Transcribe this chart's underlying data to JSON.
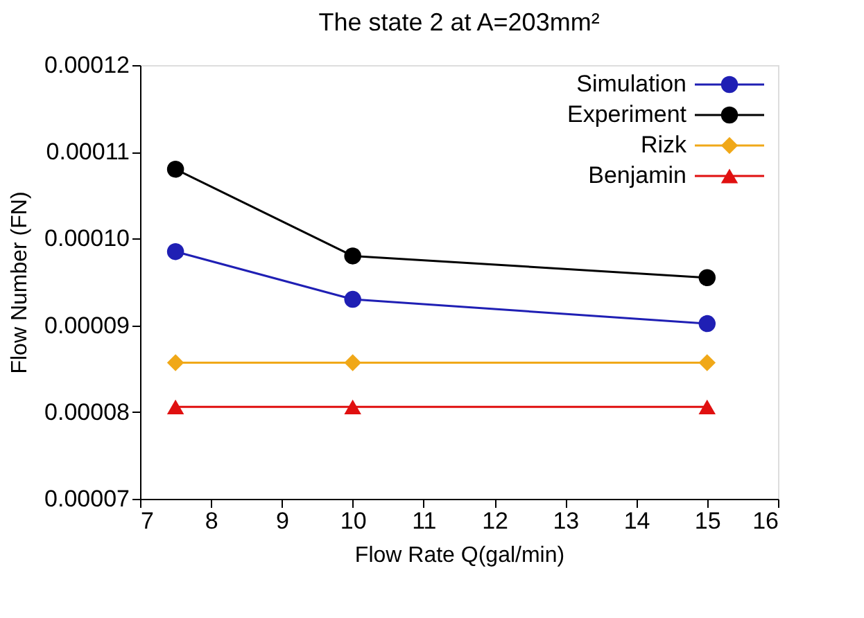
{
  "chart_data": {
    "type": "line",
    "title": "The state 2 at A=203mm²",
    "xlabel": "Flow Rate Q(gal/min)",
    "ylabel": "Flow Number (FN)",
    "x": [
      7.5,
      10,
      15
    ],
    "series": [
      {
        "name": "Simulation",
        "color": "#1f1fb4",
        "marker": "circle",
        "values": [
          9.85e-05,
          9.3e-05,
          9.02e-05
        ]
      },
      {
        "name": "Experiment",
        "color": "#000000",
        "marker": "circle",
        "values": [
          0.000108,
          9.8e-05,
          9.55e-05
        ]
      },
      {
        "name": "Rizk",
        "color": "#f0a818",
        "marker": "diamond",
        "values": [
          8.57e-05,
          8.57e-05,
          8.57e-05
        ]
      },
      {
        "name": "Benjamin",
        "color": "#e01010",
        "marker": "triangle",
        "values": [
          8.06e-05,
          8.06e-05,
          8.06e-05
        ]
      }
    ],
    "xlim": [
      7,
      16
    ],
    "xticks": [
      7,
      8,
      9,
      10,
      11,
      12,
      13,
      14,
      15,
      16
    ],
    "ylim": [
      7e-05,
      0.00012
    ],
    "yticks": [
      {
        "value": 7e-05,
        "label": "0.00007"
      },
      {
        "value": 8e-05,
        "label": "0.00008"
      },
      {
        "value": 9e-05,
        "label": "0.00009"
      },
      {
        "value": 0.0001,
        "label": "0.00010"
      },
      {
        "value": 0.00011,
        "label": "0.00011"
      },
      {
        "value": 0.00012,
        "label": "0.00012"
      }
    ],
    "grid": false,
    "legend": "top right",
    "line_style": "solid"
  }
}
